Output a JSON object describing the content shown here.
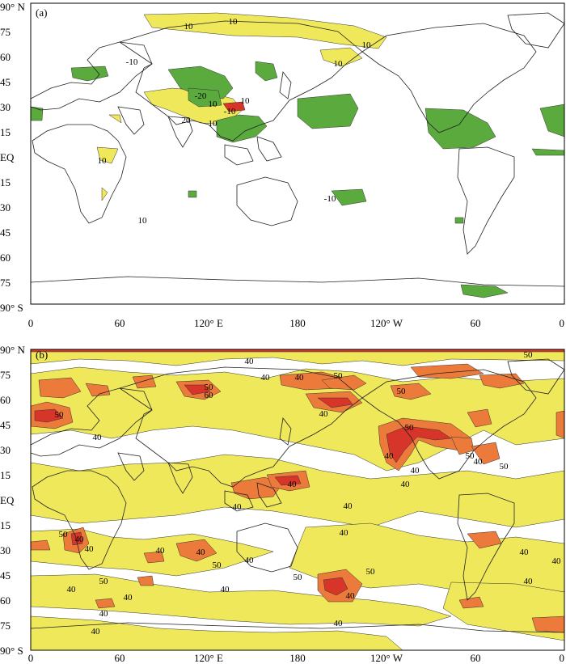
{
  "panels": [
    {
      "id": "a",
      "label": "(a)",
      "colors": {
        "low": "#efe85a",
        "mid": "#ec7a3a",
        "high": "#d8352a",
        "negative": "#5aaa3e"
      },
      "contour_labels": [
        "10",
        "10",
        "10",
        "10",
        "-10",
        "-20",
        "10",
        "10",
        "-10",
        "20",
        "10",
        "10",
        "-10",
        "10"
      ]
    },
    {
      "id": "b",
      "label": "(b)",
      "colors": {
        "low": "#efe85a",
        "mid": "#ec7a3a",
        "high": "#d8352a"
      },
      "contour_labels": [
        "40",
        "40",
        "40",
        "50",
        "60",
        "50",
        "40",
        "50",
        "40",
        "50",
        "50",
        "50",
        "40",
        "40",
        "40",
        "50",
        "40",
        "50",
        "40",
        "40",
        "40",
        "40",
        "40",
        "50",
        "40",
        "40",
        "40",
        "50",
        "40",
        "50",
        "40",
        "40",
        "50",
        "40",
        "40",
        "40",
        "40",
        "40",
        "50",
        "40",
        "40",
        "40"
      ]
    }
  ],
  "axes": {
    "lat_ticks": [
      "90° N",
      "75",
      "60",
      "45",
      "30",
      "15",
      "EQ",
      "15",
      "30",
      "45",
      "60",
      "75",
      "90° S"
    ],
    "lon_ticks": [
      "0",
      "60",
      "120° E",
      "180",
      "120° W",
      "60",
      "0"
    ]
  }
}
